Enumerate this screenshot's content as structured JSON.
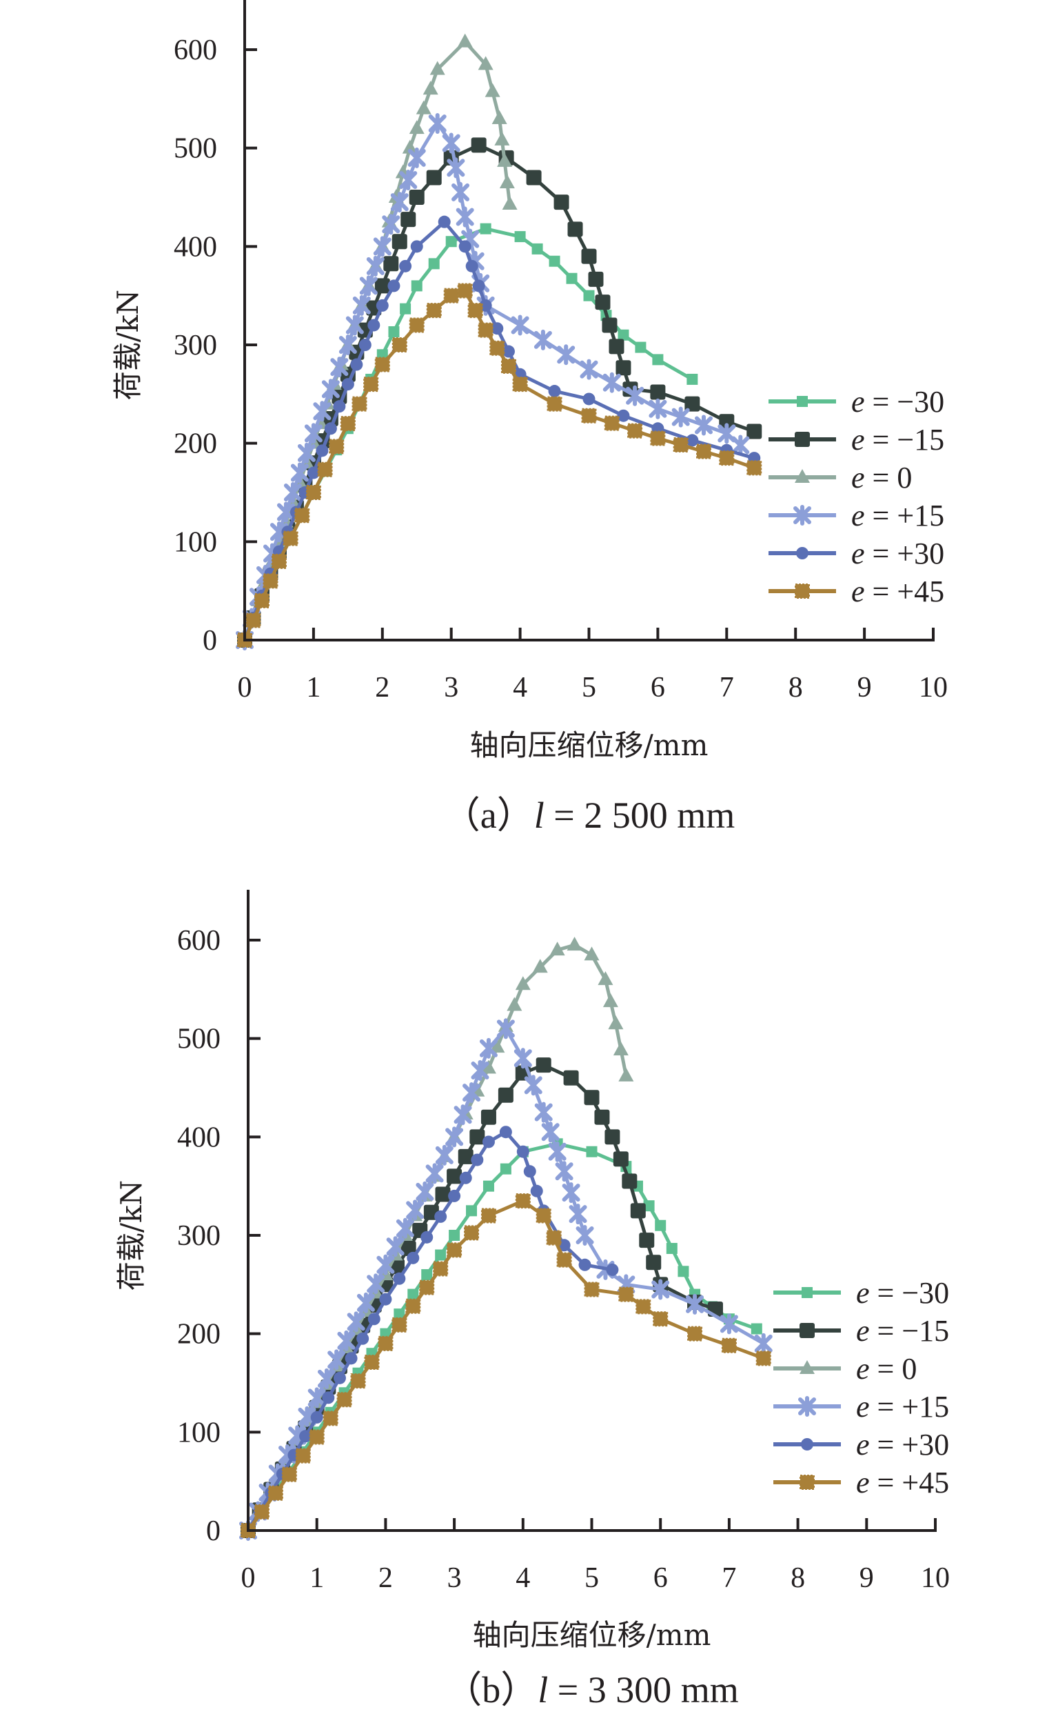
{
  "chart_data": [
    {
      "type": "line",
      "caption_prefix": "（a）",
      "caption_var": "l",
      "caption_value": " = 2 500 mm",
      "xlabel": "轴向压缩位移/mm",
      "ylabel": "荷载/kN",
      "xlim": [
        0,
        10
      ],
      "ylim": [
        0,
        600
      ],
      "xticks": [
        "0",
        "1",
        "2",
        "3",
        "4",
        "5",
        "6",
        "7",
        "8",
        "9",
        "10"
      ],
      "yticks": [
        "0",
        "100",
        "200",
        "300",
        "400",
        "500",
        "600"
      ],
      "grid": false,
      "legend_position": "right",
      "series": [
        {
          "name": "e = −30",
          "var": "e",
          "label": " = −30",
          "color": "#5dbf91",
          "marker": "square-small",
          "x": [
            0,
            0.5,
            1,
            1.5,
            2,
            2.5,
            3,
            3.5,
            4,
            4.5,
            5,
            5.5,
            6,
            6.5
          ],
          "y": [
            0,
            80,
            150,
            215,
            290,
            360,
            405,
            418,
            410,
            385,
            350,
            310,
            285,
            265
          ]
        },
        {
          "name": "e = −15",
          "var": "e",
          "label": " = −15",
          "color": "#34423e",
          "marker": "square",
          "x": [
            0,
            0.5,
            1,
            1.5,
            2,
            2.5,
            3,
            3.4,
            3.8,
            4.2,
            4.6,
            5,
            5.3,
            5.6,
            6,
            6.5,
            7,
            7.4
          ],
          "y": [
            0,
            90,
            180,
            270,
            360,
            450,
            490,
            503,
            490,
            470,
            445,
            390,
            320,
            255,
            252,
            240,
            222,
            212
          ]
        },
        {
          "name": "e = 0",
          "var": "e",
          "label": " = 0",
          "color": "#90aa9f",
          "marker": "triangle",
          "x": [
            0,
            0.5,
            1,
            1.5,
            2,
            2.4,
            2.8,
            3.2,
            3.5,
            3.7,
            3.85
          ],
          "y": [
            0,
            100,
            200,
            300,
            400,
            500,
            580,
            608,
            585,
            530,
            443
          ]
        },
        {
          "name": "e = +15",
          "var": "e",
          "label": " = +15",
          "color": "#8c9fd8",
          "marker": "star",
          "x": [
            0,
            0.5,
            1,
            1.5,
            2,
            2.5,
            2.8,
            3,
            3.2,
            3.5,
            4,
            5,
            6,
            7,
            7.2
          ],
          "y": [
            0,
            110,
            210,
            300,
            400,
            490,
            525,
            505,
            430,
            340,
            320,
            275,
            235,
            210,
            198
          ]
        },
        {
          "name": "e = +30",
          "var": "e",
          "label": " = +30",
          "color": "#5a6fb5",
          "marker": "circle",
          "x": [
            0,
            0.5,
            1,
            1.5,
            2,
            2.5,
            2.9,
            3.2,
            3.5,
            4,
            4.5,
            5,
            5.5,
            6,
            6.5,
            7,
            7.4
          ],
          "y": [
            0,
            90,
            170,
            260,
            340,
            400,
            425,
            400,
            340,
            270,
            253,
            245,
            228,
            215,
            203,
            193,
            185
          ]
        },
        {
          "name": "e = +45",
          "var": "e",
          "label": " = +45",
          "color": "#a98038",
          "marker": "square-textured",
          "x": [
            0,
            0.5,
            1,
            1.5,
            2,
            2.5,
            3,
            3.2,
            3.5,
            4,
            4.5,
            5,
            6,
            7,
            7.4
          ],
          "y": [
            0,
            80,
            150,
            220,
            280,
            320,
            350,
            355,
            315,
            260,
            240,
            228,
            205,
            185,
            175
          ]
        }
      ]
    },
    {
      "type": "line",
      "caption_prefix": "（b）",
      "caption_var": "l",
      "caption_value": " = 3 300 mm",
      "xlabel": "轴向压缩位移/mm",
      "ylabel": "荷载/kN",
      "xlim": [
        0,
        10
      ],
      "ylim": [
        0,
        600
      ],
      "xticks": [
        "0",
        "1",
        "2",
        "3",
        "4",
        "5",
        "6",
        "7",
        "8",
        "9",
        "10"
      ],
      "yticks": [
        "0",
        "100",
        "200",
        "300",
        "400",
        "500",
        "600"
      ],
      "grid": false,
      "legend_position": "right",
      "series": [
        {
          "name": "e = −30",
          "var": "e",
          "label": " = −30",
          "color": "#5dbf91",
          "marker": "square-small",
          "x": [
            0,
            1,
            2,
            3,
            3.5,
            4,
            4.5,
            5,
            5.5,
            6,
            6.5,
            7,
            7.4
          ],
          "y": [
            0,
            100,
            200,
            300,
            350,
            385,
            393,
            385,
            370,
            310,
            240,
            215,
            205
          ]
        },
        {
          "name": "e = −15",
          "var": "e",
          "label": " = −15",
          "color": "#34423e",
          "marker": "square",
          "x": [
            0,
            1,
            2,
            3,
            3.5,
            4,
            4.3,
            4.7,
            5,
            5.3,
            5.55,
            5.8,
            6,
            6.5,
            6.8
          ],
          "y": [
            0,
            125,
            250,
            360,
            420,
            465,
            473,
            460,
            440,
            400,
            355,
            295,
            250,
            232,
            225
          ]
        },
        {
          "name": "e = 0",
          "var": "e",
          "label": " = 0",
          "color": "#90aa9f",
          "marker": "triangle",
          "x": [
            0,
            1,
            2,
            3,
            3.5,
            4,
            4.5,
            4.75,
            5,
            5.2,
            5.35,
            5.5
          ],
          "y": [
            0,
            130,
            260,
            400,
            470,
            555,
            590,
            595,
            585,
            560,
            515,
            462
          ]
        },
        {
          "name": "e = +15",
          "var": "e",
          "label": " = +15",
          "color": "#8c9fd8",
          "marker": "star",
          "x": [
            0,
            1,
            2,
            3,
            3.5,
            3.75,
            4,
            4.3,
            4.6,
            4.9,
            5.2,
            5.5,
            6,
            6.5,
            7,
            7.5
          ],
          "y": [
            0,
            135,
            270,
            400,
            490,
            510,
            480,
            425,
            365,
            300,
            265,
            250,
            245,
            230,
            210,
            190
          ]
        },
        {
          "name": "e = +30",
          "var": "e",
          "label": " = +30",
          "color": "#5a6fb5",
          "marker": "circle",
          "x": [
            0,
            1,
            2,
            3,
            3.5,
            3.75,
            4,
            4.3,
            4.6,
            4.9,
            5.3
          ],
          "y": [
            0,
            115,
            235,
            340,
            395,
            405,
            385,
            325,
            290,
            270,
            265
          ]
        },
        {
          "name": "e = +45",
          "var": "e",
          "label": " = +45",
          "color": "#a98038",
          "marker": "square-textured",
          "x": [
            0,
            1,
            2,
            3,
            3.5,
            4,
            4.3,
            4.6,
            5,
            5.5,
            6,
            6.5,
            7,
            7.5
          ],
          "y": [
            0,
            95,
            190,
            285,
            320,
            335,
            320,
            275,
            245,
            240,
            215,
            200,
            188,
            175
          ]
        }
      ]
    }
  ]
}
